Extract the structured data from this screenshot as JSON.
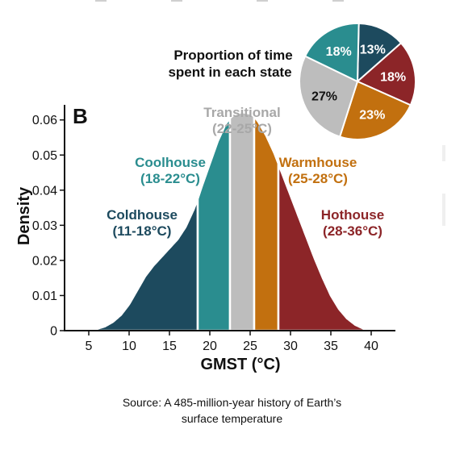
{
  "chart_data": [
    {
      "type": "area",
      "panel_label": "B",
      "xlabel": "GMST (°C)",
      "ylabel": "Density",
      "xlim": [
        2,
        43
      ],
      "ylim": [
        0,
        0.062
      ],
      "x_ticks": [
        5,
        10,
        15,
        20,
        25,
        30,
        35,
        40
      ],
      "y_ticks": [
        0,
        0.01,
        0.02,
        0.03,
        0.04,
        0.05,
        0.06
      ],
      "y_tick_labels": [
        "0",
        "0.01",
        "0.02",
        "0.03",
        "0.04",
        "0.05",
        "0.06"
      ],
      "density_curve": {
        "x": [
          5,
          6,
          7,
          8,
          9,
          10,
          11,
          12,
          13,
          14,
          15,
          16,
          17,
          18,
          18.5,
          19,
          20,
          21,
          22,
          22.5,
          23,
          24,
          25,
          25.5,
          26,
          27,
          28,
          28.5,
          29,
          30,
          31,
          32,
          33,
          34,
          35,
          36,
          37,
          38,
          39,
          40
        ],
        "y": [
          0,
          0.0005,
          0.0012,
          0.0025,
          0.0045,
          0.0075,
          0.0115,
          0.0155,
          0.0185,
          0.021,
          0.0235,
          0.026,
          0.0295,
          0.0345,
          0.0375,
          0.041,
          0.0475,
          0.054,
          0.059,
          0.0605,
          0.0615,
          0.0622,
          0.0618,
          0.061,
          0.0595,
          0.0555,
          0.0505,
          0.0475,
          0.0445,
          0.0385,
          0.0325,
          0.0265,
          0.0205,
          0.015,
          0.01,
          0.0062,
          0.0035,
          0.0017,
          0.0006,
          0.0001
        ]
      },
      "series": [
        {
          "name": "Coldhouse",
          "range_label": "(11-18°C)",
          "x_start": 5,
          "x_end": 18.5,
          "color": "#1d4a5e"
        },
        {
          "name": "Coolhouse",
          "range_label": "(18-22°C)",
          "x_start": 18.5,
          "x_end": 22.5,
          "color": "#2a8d8f"
        },
        {
          "name": "Transitional",
          "range_label": "(22-25°C)",
          "x_start": 22.5,
          "x_end": 25.5,
          "color": "#bdbdbd"
        },
        {
          "name": "Warmhouse",
          "range_label": "(25-28°C)",
          "x_start": 25.5,
          "x_end": 28.5,
          "color": "#c2700f"
        },
        {
          "name": "Hothouse",
          "range_label": "(28-36°C)",
          "x_start": 28.5,
          "x_end": 40,
          "color": "#8c2528"
        }
      ]
    },
    {
      "type": "pie",
      "title": "Proportion of time spent in each state",
      "title_lines": [
        "Proportion of time",
        "spent in each state"
      ],
      "slices": [
        {
          "label": "13%",
          "value": 13,
          "color": "#1d4a5e"
        },
        {
          "label": "18%",
          "value": 18,
          "color": "#8c2528"
        },
        {
          "label": "23%",
          "value": 23,
          "color": "#c2700f"
        },
        {
          "label": "27%",
          "value": 27,
          "color": "#bdbdbd"
        },
        {
          "label": "18%",
          "value": 18,
          "color": "#2a8d8f"
        }
      ]
    }
  ],
  "source": {
    "line1": "Source: A 485-million-year history of Earth’s",
    "line2": "surface temperature"
  }
}
